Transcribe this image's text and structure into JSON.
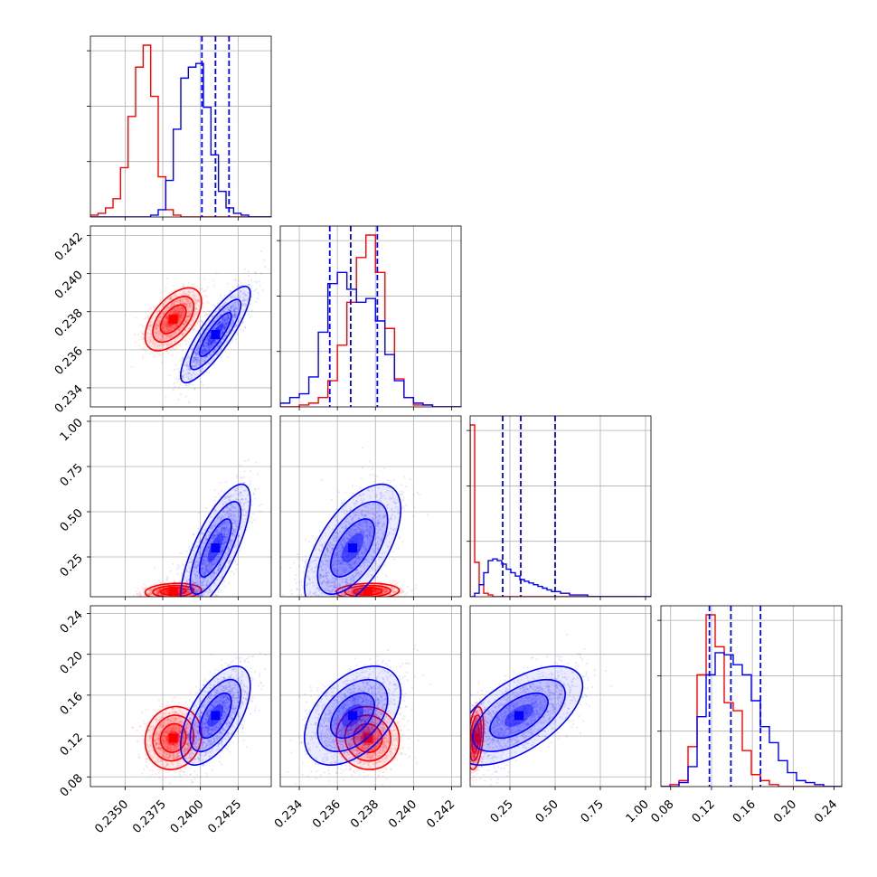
{
  "chart_data": {
    "type": "corner",
    "colors": {
      "red": "#ff0000",
      "blue": "#0000ff"
    },
    "grid": true,
    "variables": [
      {
        "ticks": [
          0.235,
          0.2375,
          0.24,
          0.2425
        ],
        "tick_labels": [
          "0.2350",
          "0.2375",
          "0.2400",
          "0.2425"
        ],
        "range": [
          0.2327,
          0.2447
        ]
      },
      {
        "ticks": [
          0.234,
          0.236,
          0.238,
          0.24,
          0.242
        ],
        "tick_labels": [
          "0.234",
          "0.236",
          "0.238",
          "0.240",
          "0.242"
        ],
        "range": [
          0.233,
          0.2425
        ]
      },
      {
        "ticks": [
          0.25,
          0.5,
          0.75,
          1.0
        ],
        "tick_labels": [
          "0.25",
          "0.50",
          "0.75",
          "1.00"
        ],
        "range": [
          0.03,
          1.03
        ]
      },
      {
        "ticks": [
          0.08,
          0.12,
          0.16,
          0.2,
          0.24
        ],
        "tick_labels": [
          "0.08",
          "0.12",
          "0.16",
          "0.20",
          "0.24"
        ],
        "range": [
          0.0705,
          0.2475
        ]
      }
    ],
    "series": [
      {
        "color": "red",
        "means": [
          0.2382,
          0.2376,
          0.06,
          0.118
        ],
        "sds": [
          0.00085,
          0.00075,
          0.02,
          0.014
        ]
      },
      {
        "color": "blue",
        "means": [
          0.241,
          0.2368,
          0.3,
          0.14
        ],
        "sds": [
          0.00105,
          0.00115,
          0.16,
          0.022
        ]
      }
    ],
    "quantile_lines": {
      "color": "blue",
      "values": [
        [
          0.2401,
          0.241,
          0.2419
        ],
        [
          0.2356,
          0.2367,
          0.2381
        ],
        [
          0.21,
          0.31,
          0.5
        ],
        [
          0.118,
          0.139,
          0.168
        ]
      ]
    },
    "histograms": [
      {
        "red": {
          "start": 0.2327,
          "width": 0.0005,
          "counts": [
            0.01,
            0.02,
            0.05,
            0.1,
            0.27,
            0.55,
            0.82,
            0.94,
            0.66,
            0.22,
            0.04,
            0.01,
            0.0,
            0.0,
            0.0,
            0.0,
            0.0,
            0.0,
            0.0,
            0.0,
            0.0,
            0.0,
            0.0,
            0.0
          ]
        },
        "blue": {
          "start": 0.2327,
          "width": 0.0005,
          "counts": [
            0.0,
            0.0,
            0.0,
            0.0,
            0.0,
            0.0,
            0.0,
            0.0,
            0.01,
            0.04,
            0.2,
            0.48,
            0.76,
            0.82,
            0.84,
            0.6,
            0.34,
            0.14,
            0.05,
            0.02,
            0.01,
            0.0,
            0.0,
            0.0
          ]
        }
      },
      {
        "red": {
          "start": 0.233,
          "width": 0.0005,
          "counts": [
            0.0,
            0.0,
            0.01,
            0.02,
            0.05,
            0.14,
            0.33,
            0.56,
            0.8,
            0.92,
            0.72,
            0.42,
            0.15,
            0.05,
            0.01,
            0.01,
            0.0,
            0.0,
            0.0
          ]
        },
        "blue": {
          "start": 0.233,
          "width": 0.0005,
          "counts": [
            0.02,
            0.05,
            0.07,
            0.16,
            0.4,
            0.66,
            0.72,
            0.63,
            0.56,
            0.58,
            0.46,
            0.28,
            0.14,
            0.05,
            0.02,
            0.01,
            0.0,
            0.0,
            0.0
          ]
        }
      },
      {
        "red": {
          "start": 0.03,
          "width": 0.025,
          "counts": [
            1.0,
            0.2,
            0.07,
            0.02,
            0.01,
            0.0,
            0.0,
            0.0,
            0.0,
            0.0,
            0.0,
            0.0,
            0.0,
            0.0,
            0.0,
            0.0,
            0.0,
            0.0,
            0.0,
            0.0,
            0.0,
            0.0,
            0.0,
            0.0,
            0.0,
            0.0,
            0.0,
            0.0,
            0.0,
            0.0,
            0.0,
            0.0,
            0.0,
            0.0,
            0.0,
            0.0,
            0.0,
            0.0,
            0.0,
            0.0
          ]
        },
        "blue": {
          "start": 0.03,
          "width": 0.025,
          "counts": [
            0.0,
            0.02,
            0.07,
            0.14,
            0.21,
            0.22,
            0.21,
            0.19,
            0.16,
            0.14,
            0.12,
            0.1,
            0.09,
            0.08,
            0.07,
            0.06,
            0.05,
            0.04,
            0.03,
            0.03,
            0.02,
            0.02,
            0.01,
            0.01,
            0.01,
            0.01,
            0.0,
            0.0,
            0.0,
            0.0,
            0.0,
            0.0,
            0.0,
            0.0,
            0.0,
            0.0,
            0.0,
            0.0,
            0.0,
            0.0
          ]
        }
      },
      {
        "red": {
          "start": 0.0705,
          "width": 0.00885,
          "counts": [
            0.0,
            0.01,
            0.03,
            0.2,
            0.56,
            0.86,
            0.7,
            0.42,
            0.38,
            0.18,
            0.06,
            0.03,
            0.01,
            0.0,
            0.0,
            0.0,
            0.0,
            0.0,
            0.0,
            0.0
          ]
        },
        "blue": {
          "start": 0.0705,
          "width": 0.00885,
          "counts": [
            0.0,
            0.0,
            0.02,
            0.1,
            0.35,
            0.56,
            0.67,
            0.66,
            0.61,
            0.56,
            0.43,
            0.3,
            0.22,
            0.13,
            0.07,
            0.03,
            0.02,
            0.01,
            0.0,
            0.0
          ]
        }
      }
    ]
  }
}
